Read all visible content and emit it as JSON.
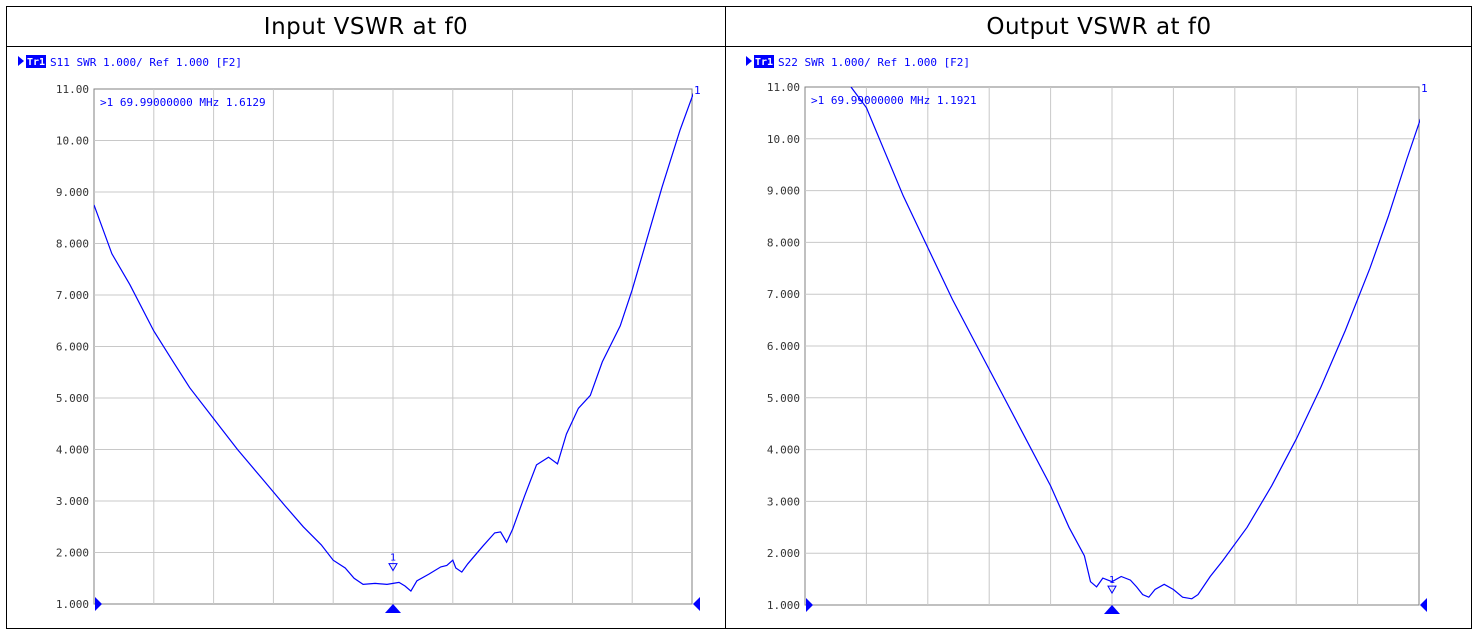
{
  "headers": [
    "Input VSWR at f0",
    "Output VSWR at f0"
  ],
  "trace_color": "#0000ff",
  "chart_data": [
    {
      "type": "line",
      "title": "Input VSWR at f0",
      "trace_tag": "Tr1",
      "status_line": "S11  SWR 1.000/ Ref 1.000 [F2]",
      "marker_readout": ">1  69.99000000 MHz  1.6129",
      "marker_label": "1",
      "end_label": "1",
      "ytick_labels": [
        "11.00",
        "10.00",
        "9.000",
        "8.000",
        "7.000",
        "6.000",
        "5.000",
        "4.000",
        "3.000",
        "2.000",
        "1.000"
      ],
      "ylim": [
        1,
        11
      ],
      "xlim": [
        0,
        10
      ],
      "grid": true,
      "marker": {
        "x": 5.0,
        "y": 1.61
      },
      "points": [
        [
          0,
          8.75
        ],
        [
          0.3,
          7.8
        ],
        [
          0.6,
          7.2
        ],
        [
          1.0,
          6.3
        ],
        [
          1.3,
          5.75
        ],
        [
          1.6,
          5.2
        ],
        [
          2.0,
          4.6
        ],
        [
          2.4,
          4.0
        ],
        [
          2.8,
          3.45
        ],
        [
          3.2,
          2.9
        ],
        [
          3.5,
          2.5
        ],
        [
          3.8,
          2.15
        ],
        [
          4.0,
          1.85
        ],
        [
          4.2,
          1.7
        ],
        [
          4.35,
          1.5
        ],
        [
          4.5,
          1.38
        ],
        [
          4.7,
          1.4
        ],
        [
          4.9,
          1.38
        ],
        [
          5.1,
          1.42
        ],
        [
          5.2,
          1.35
        ],
        [
          5.3,
          1.25
        ],
        [
          5.4,
          1.45
        ],
        [
          5.6,
          1.58
        ],
        [
          5.8,
          1.72
        ],
        [
          5.9,
          1.75
        ],
        [
          6.0,
          1.85
        ],
        [
          6.05,
          1.7
        ],
        [
          6.15,
          1.62
        ],
        [
          6.25,
          1.78
        ],
        [
          6.5,
          2.12
        ],
        [
          6.7,
          2.38
        ],
        [
          6.8,
          2.4
        ],
        [
          6.9,
          2.2
        ],
        [
          7.0,
          2.45
        ],
        [
          7.2,
          3.1
        ],
        [
          7.4,
          3.7
        ],
        [
          7.6,
          3.85
        ],
        [
          7.75,
          3.72
        ],
        [
          7.9,
          4.3
        ],
        [
          8.1,
          4.8
        ],
        [
          8.3,
          5.05
        ],
        [
          8.5,
          5.7
        ],
        [
          8.8,
          6.4
        ],
        [
          9.0,
          7.1
        ],
        [
          9.2,
          7.9
        ],
        [
          9.5,
          9.1
        ],
        [
          9.8,
          10.2
        ],
        [
          10.05,
          11.0
        ],
        [
          10.8,
          11.0
        ]
      ]
    },
    {
      "type": "line",
      "title": "Output VSWR at f0",
      "trace_tag": "Tr1",
      "status_line": "S22  SWR 1.000/ Ref 1.000 [F2]",
      "marker_readout": ">1  69.99000000 MHz  1.1921",
      "marker_label": "1",
      "end_label": "1",
      "ytick_labels": [
        "11.00",
        "10.00",
        "9.000",
        "8.000",
        "7.000",
        "6.000",
        "5.000",
        "4.000",
        "3.000",
        "2.000",
        "1.000"
      ],
      "ylim": [
        1,
        11
      ],
      "xlim": [
        0,
        10
      ],
      "grid": true,
      "marker": {
        "x": 5.0,
        "y": 1.19
      },
      "points": [
        [
          0.75,
          11.0
        ],
        [
          1.0,
          10.6
        ],
        [
          1.3,
          9.75
        ],
        [
          1.6,
          8.9
        ],
        [
          2.0,
          7.9
        ],
        [
          2.4,
          6.9
        ],
        [
          2.8,
          6.0
        ],
        [
          3.2,
          5.1
        ],
        [
          3.6,
          4.2
        ],
        [
          4.0,
          3.3
        ],
        [
          4.3,
          2.5
        ],
        [
          4.55,
          1.95
        ],
        [
          4.65,
          1.45
        ],
        [
          4.75,
          1.35
        ],
        [
          4.85,
          1.52
        ],
        [
          5.0,
          1.45
        ],
        [
          5.15,
          1.55
        ],
        [
          5.3,
          1.48
        ],
        [
          5.4,
          1.35
        ],
        [
          5.5,
          1.2
        ],
        [
          5.6,
          1.15
        ],
        [
          5.7,
          1.3
        ],
        [
          5.85,
          1.4
        ],
        [
          6.0,
          1.3
        ],
        [
          6.15,
          1.15
        ],
        [
          6.3,
          1.12
        ],
        [
          6.4,
          1.2
        ],
        [
          6.6,
          1.55
        ],
        [
          6.8,
          1.85
        ],
        [
          7.2,
          2.5
        ],
        [
          7.6,
          3.3
        ],
        [
          8.0,
          4.2
        ],
        [
          8.4,
          5.2
        ],
        [
          8.8,
          6.3
        ],
        [
          9.2,
          7.5
        ],
        [
          9.5,
          8.5
        ],
        [
          9.8,
          9.6
        ],
        [
          10.0,
          10.3
        ],
        [
          10.2,
          11.0
        ],
        [
          10.6,
          11.0
        ]
      ]
    }
  ]
}
